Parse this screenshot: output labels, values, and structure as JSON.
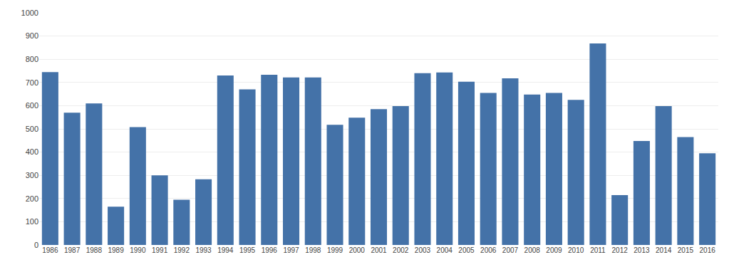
{
  "chart_data": {
    "type": "bar",
    "categories": [
      "1986",
      "1987",
      "1988",
      "1989",
      "1990",
      "1991",
      "1992",
      "1993",
      "1994",
      "1995",
      "1996",
      "1997",
      "1998",
      "1999",
      "2000",
      "2001",
      "2002",
      "2003",
      "2004",
      "2005",
      "2006",
      "2007",
      "2008",
      "2009",
      "2010",
      "2011",
      "2012",
      "2013",
      "2014",
      "2015",
      "2016"
    ],
    "values": [
      745,
      570,
      610,
      165,
      508,
      300,
      195,
      283,
      730,
      670,
      733,
      722,
      722,
      518,
      548,
      585,
      598,
      740,
      743,
      703,
      655,
      718,
      648,
      655,
      625,
      868,
      215,
      448,
      598,
      465,
      395
    ],
    "color": "#4472a8",
    "ylim": [
      0,
      1000
    ],
    "yticks": [
      0,
      100,
      200,
      300,
      400,
      500,
      600,
      700,
      800,
      900,
      1000
    ],
    "grid": true
  }
}
